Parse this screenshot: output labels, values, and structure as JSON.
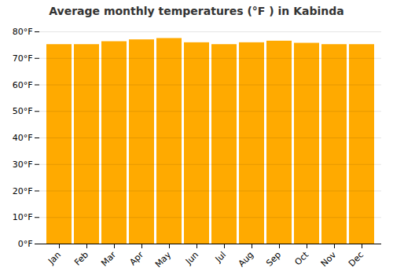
{
  "chart_data": {
    "type": "bar",
    "title": "Average monthly temperatures (°F ) in Kabinda",
    "categories": [
      "Jan",
      "Feb",
      "Mar",
      "Apr",
      "May",
      "Jun",
      "Jul",
      "Aug",
      "Sep",
      "Oct",
      "Nov",
      "Dec"
    ],
    "values": [
      75.2,
      75.2,
      76.3,
      77.0,
      77.5,
      75.9,
      75.2,
      75.9,
      76.5,
      75.7,
      75.2,
      75.2
    ],
    "color": "#FFAA00",
    "ylim": [
      0,
      80
    ],
    "yticks": [
      {
        "value": 0,
        "label": "0°F"
      },
      {
        "value": 10,
        "label": "10°F"
      },
      {
        "value": 20,
        "label": "20°F"
      },
      {
        "value": 30,
        "label": "30°F"
      },
      {
        "value": 40,
        "label": "40°F"
      },
      {
        "value": 50,
        "label": "50°F"
      },
      {
        "value": 60,
        "label": "60°F"
      },
      {
        "value": 70,
        "label": "70°F"
      },
      {
        "value": 80,
        "label": "80°F"
      }
    ],
    "grid": true
  }
}
